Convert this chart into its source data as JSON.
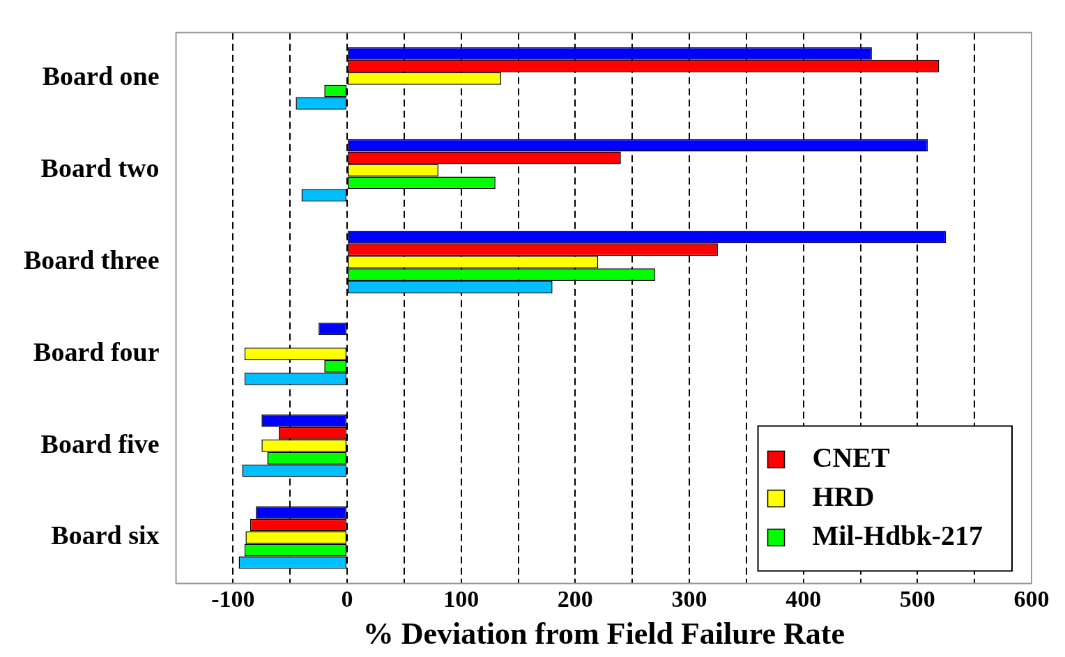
{
  "chart_data": {
    "type": "bar",
    "orientation": "horizontal",
    "xlabel": "% Deviation from Field Failure Rate",
    "categories": [
      "Board one",
      "Board two",
      "Board three",
      "Board four",
      "Board five",
      "Board six"
    ],
    "series": [
      {
        "color": "#0000ff",
        "values": [
          460,
          509,
          525,
          -25,
          -75,
          -80
        ]
      },
      {
        "name": "CNET",
        "color": "#ff0000",
        "values": [
          519,
          240,
          325,
          null,
          -60,
          -85
        ]
      },
      {
        "name": "HRD",
        "color": "#ffff00",
        "values": [
          135,
          80,
          220,
          -90,
          -75,
          -89
        ]
      },
      {
        "name": "Mil-Hdbk-217",
        "color": "#00ff00",
        "values": [
          -20,
          130,
          270,
          -20,
          -70,
          -90
        ]
      },
      {
        "color": "#00bfff",
        "values": [
          -45,
          -40,
          180,
          -90,
          -92,
          -95
        ]
      }
    ],
    "xlim": [
      -150,
      600
    ],
    "xticks": [
      -100,
      {
        "value": -50,
        "label": null
      },
      0,
      {
        "value": 50,
        "label": null
      },
      100,
      {
        "value": 150,
        "label": null
      },
      200,
      {
        "value": 250,
        "label": null
      },
      300,
      {
        "value": 350,
        "label": null
      },
      400,
      {
        "value": 450,
        "label": null
      },
      500,
      {
        "value": 550,
        "label": null
      },
      600
    ],
    "grid": "x",
    "legend": "bottom right"
  }
}
